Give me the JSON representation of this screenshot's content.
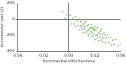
{
  "chart_data": {
    "type": "scatter",
    "x_label": "Incremental effectiveness",
    "y_label": "Incremental cost (£)",
    "x": [
      -0.005,
      -0.003,
      -0.002,
      0.0,
      0.001,
      0.002,
      0.003,
      0.004,
      0.005,
      0.005,
      0.006,
      0.007,
      0.007,
      0.008,
      0.009,
      0.009,
      0.01,
      0.01,
      0.011,
      0.011,
      0.012,
      0.012,
      0.013,
      0.013,
      0.014,
      0.014,
      0.015,
      0.015,
      0.016,
      0.016,
      0.017,
      0.017,
      0.018,
      0.018,
      0.019,
      0.019,
      0.02,
      0.02,
      0.021,
      0.021,
      0.022,
      0.022,
      0.023,
      0.023,
      0.024,
      0.024,
      0.025,
      0.025,
      0.026,
      0.026,
      0.027,
      0.027,
      0.028,
      0.028,
      0.029,
      0.03,
      0.031,
      0.032,
      0.033,
      0.034,
      0.035,
      0.036,
      0.038,
      0.04,
      0.015,
      0.018,
      0.02,
      0.012,
      0.022,
      0.017,
      0.024,
      0.01,
      0.019,
      0.026
    ],
    "values": [
      95,
      7,
      58,
      -30,
      51,
      -58,
      18,
      -61,
      30,
      -95,
      -24,
      -78,
      2,
      -132,
      -31,
      -81,
      -10,
      -125,
      -64,
      -169,
      -48,
      -118,
      -27,
      -162,
      -86,
      -146,
      -65,
      -200,
      -119,
      -174,
      -68,
      -153,
      -107,
      -217,
      -141,
      -196,
      -100,
      -255,
      -144,
      -199,
      -108,
      -238,
      -172,
      -267,
      -151,
      -221,
      -125,
      -260,
      -194,
      -284,
      -173,
      -238,
      -197,
      -292,
      -231,
      -195,
      -289,
      -228,
      -322,
      -261,
      -315,
      -254,
      -332,
      -310,
      -140,
      -170,
      -130,
      -90,
      -200,
      -110,
      -180,
      -90,
      -120,
      -230
    ],
    "color": "#86c06a",
    "marker": "circle",
    "xlim": [
      -0.04,
      0.04
    ],
    "xticks": [
      {
        "value": -0.04,
        "label": "-0.04"
      },
      {
        "value": -0.02,
        "label": "-0.02"
      },
      {
        "value": 0,
        "label": "0.00"
      },
      {
        "value": 0.02,
        "label": "0.02"
      },
      {
        "value": 0.04,
        "label": "0.04"
      }
    ],
    "ylim": [
      -400,
      200
    ],
    "yticks": [
      -400,
      -200,
      0,
      200
    ],
    "grid": false
  }
}
